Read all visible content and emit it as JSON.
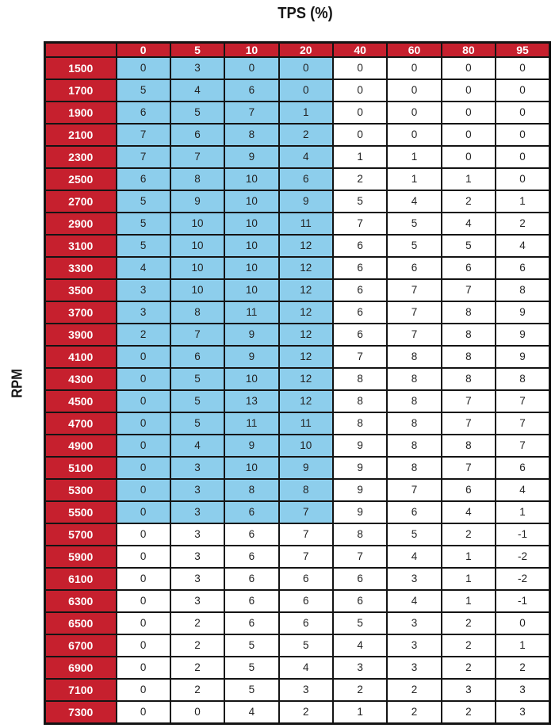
{
  "title": "TPS (%)",
  "row_axis_label": "RPM",
  "colors": {
    "header_red": "#c6202e",
    "highlight_blue": "#8dceec",
    "border_black": "#141414",
    "cell_text": "#232323",
    "header_text": "#ffffff"
  },
  "chart_data": {
    "type": "table",
    "title": "TPS (%)",
    "row_label": "RPM",
    "columns": [
      "0",
      "5",
      "10",
      "20",
      "40",
      "60",
      "80",
      "95"
    ],
    "rows": [
      "1500",
      "1700",
      "1900",
      "2100",
      "2300",
      "2500",
      "2700",
      "2900",
      "3100",
      "3300",
      "3500",
      "3700",
      "3900",
      "4100",
      "4300",
      "4500",
      "4700",
      "4900",
      "5100",
      "5300",
      "5500",
      "5700",
      "5900",
      "6100",
      "6300",
      "6500",
      "6700",
      "6900",
      "7100",
      "7300"
    ],
    "values": [
      [
        0,
        3,
        0,
        0,
        0,
        0,
        0,
        0
      ],
      [
        5,
        4,
        6,
        0,
        0,
        0,
        0,
        0
      ],
      [
        6,
        5,
        7,
        1,
        0,
        0,
        0,
        0
      ],
      [
        7,
        6,
        8,
        2,
        0,
        0,
        0,
        0
      ],
      [
        7,
        7,
        9,
        4,
        1,
        1,
        0,
        0
      ],
      [
        6,
        8,
        10,
        6,
        2,
        1,
        1,
        0
      ],
      [
        5,
        9,
        10,
        9,
        5,
        4,
        2,
        1
      ],
      [
        5,
        10,
        10,
        11,
        7,
        5,
        4,
        2
      ],
      [
        5,
        10,
        10,
        12,
        6,
        5,
        5,
        4
      ],
      [
        4,
        10,
        10,
        12,
        6,
        6,
        6,
        6
      ],
      [
        3,
        10,
        10,
        12,
        6,
        7,
        7,
        8
      ],
      [
        3,
        8,
        11,
        12,
        6,
        7,
        8,
        9
      ],
      [
        2,
        7,
        9,
        12,
        6,
        7,
        8,
        9
      ],
      [
        0,
        6,
        9,
        12,
        7,
        8,
        8,
        9
      ],
      [
        0,
        5,
        10,
        12,
        8,
        8,
        8,
        8
      ],
      [
        0,
        5,
        13,
        12,
        8,
        8,
        7,
        7
      ],
      [
        0,
        5,
        11,
        11,
        8,
        8,
        7,
        7
      ],
      [
        0,
        4,
        9,
        10,
        9,
        8,
        8,
        7
      ],
      [
        0,
        3,
        10,
        9,
        9,
        8,
        7,
        6
      ],
      [
        0,
        3,
        8,
        8,
        9,
        7,
        6,
        4
      ],
      [
        0,
        3,
        6,
        7,
        9,
        6,
        4,
        1
      ],
      [
        0,
        3,
        6,
        7,
        8,
        5,
        2,
        -1
      ],
      [
        0,
        3,
        6,
        7,
        7,
        4,
        1,
        -2
      ],
      [
        0,
        3,
        6,
        6,
        6,
        3,
        1,
        -2
      ],
      [
        0,
        3,
        6,
        6,
        6,
        4,
        1,
        -1
      ],
      [
        0,
        2,
        6,
        6,
        5,
        3,
        2,
        0
      ],
      [
        0,
        2,
        5,
        5,
        4,
        3,
        2,
        1
      ],
      [
        0,
        2,
        5,
        4,
        3,
        3,
        2,
        2
      ],
      [
        0,
        2,
        5,
        3,
        2,
        2,
        3,
        3
      ],
      [
        0,
        0,
        4,
        2,
        1,
        2,
        2,
        3
      ]
    ],
    "highlight": {
      "color": "#8dceec",
      "cols": 4,
      "first_row": "1500",
      "last_row": "5500",
      "note": "First four TPS columns (0-20) are highlighted blue for RPM rows 1500 through 5500"
    },
    "legend_position": "none",
    "grid": true
  }
}
